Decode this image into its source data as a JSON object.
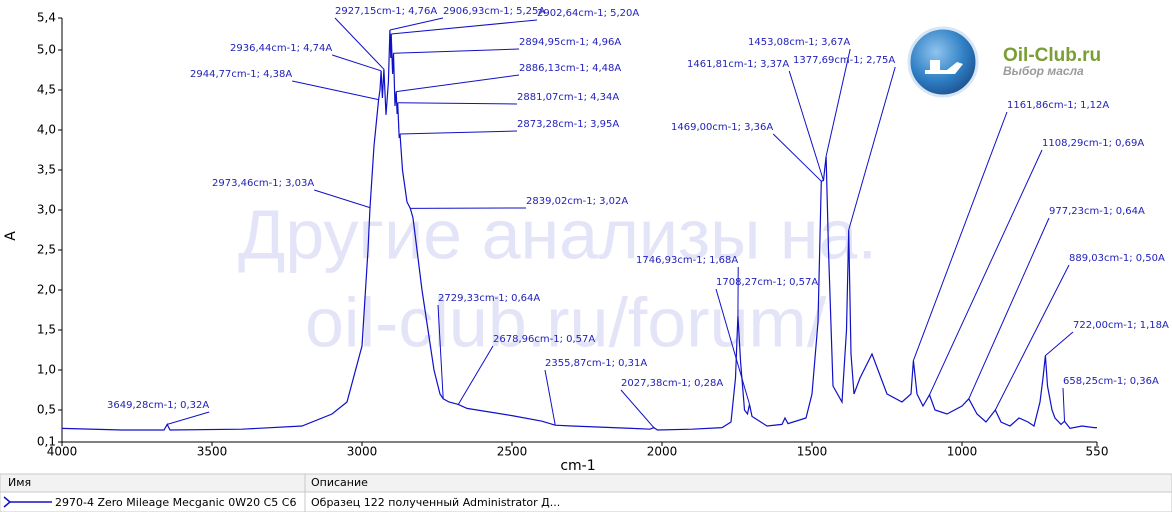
{
  "chart_data": {
    "type": "line",
    "xlabel": "cm-1",
    "ylabel": "A",
    "xlim": [
      4000,
      550
    ],
    "ylim": [
      0.1,
      5.4
    ],
    "xticks": [
      4000,
      3500,
      3000,
      2500,
      2000,
      1500,
      1000,
      550
    ],
    "yticks": [
      {
        "value": 0.1,
        "label": "0,1"
      },
      {
        "value": 0.5,
        "label": "0,5"
      },
      {
        "value": 1.0,
        "label": "1,0"
      },
      {
        "value": 1.5,
        "label": "1,5"
      },
      {
        "value": 2.0,
        "label": "2,0"
      },
      {
        "value": 2.5,
        "label": "2,5"
      },
      {
        "value": 3.0,
        "label": "3,0"
      },
      {
        "value": 3.5,
        "label": "3,5"
      },
      {
        "value": 4.0,
        "label": "4,0"
      },
      {
        "value": 4.5,
        "label": "4,5"
      },
      {
        "value": 5.0,
        "label": "5,0"
      },
      {
        "value": 5.4,
        "label": "5,4"
      }
    ],
    "x": [
      4000,
      3800,
      3660,
      3649.28,
      3640,
      3400,
      3200,
      3100,
      3050,
      3000,
      2980,
      2973.46,
      2960,
      2944.77,
      2940,
      2936.44,
      2932,
      2927.15,
      2920,
      2912,
      2906.93,
      2904,
      2902.64,
      2898,
      2894.95,
      2890,
      2886.13,
      2883,
      2881.07,
      2876,
      2873.28,
      2865,
      2850,
      2839.02,
      2830,
      2800,
      2760,
      2740,
      2729.33,
      2710,
      2690,
      2678.96,
      2650,
      2500,
      2400,
      2355.87,
      2300,
      2100,
      2040,
      2027.38,
      2015,
      1900,
      1800,
      1770,
      1755,
      1746.93,
      1738,
      1725,
      1715,
      1708.27,
      1700,
      1650,
      1600,
      1590,
      1580,
      1520,
      1500,
      1480,
      1469,
      1461.81,
      1458,
      1453.08,
      1445,
      1430,
      1400,
      1385,
      1377.69,
      1370,
      1360,
      1340,
      1300,
      1250,
      1200,
      1170,
      1161.86,
      1150,
      1130,
      1108.29,
      1090,
      1050,
      1000,
      977.23,
      950,
      920,
      889.03,
      870,
      840,
      810,
      780,
      760,
      740,
      730,
      722,
      715,
      700,
      690,
      670,
      658.25,
      640,
      600,
      560,
      550
    ],
    "series": [
      {
        "name": "2970-4 Zero Mileage Mecganic 0W20 C5 C6",
        "description": "Образец 122 полученный Administrator Д...",
        "color": "#1010c8",
        "values": [
          0.27,
          0.25,
          0.25,
          0.32,
          0.25,
          0.26,
          0.3,
          0.45,
          0.6,
          1.3,
          2.5,
          3.03,
          3.8,
          4.38,
          4.5,
          4.74,
          4.4,
          4.76,
          4.19,
          4.6,
          5.25,
          4.9,
          5.2,
          4.7,
          4.96,
          4.3,
          4.48,
          4.2,
          4.34,
          3.9,
          3.95,
          3.5,
          3.1,
          3.02,
          2.9,
          2.0,
          1.0,
          0.7,
          0.64,
          0.6,
          0.58,
          0.57,
          0.52,
          0.43,
          0.36,
          0.31,
          0.3,
          0.27,
          0.26,
          0.28,
          0.25,
          0.26,
          0.28,
          0.35,
          0.9,
          1.68,
          1.1,
          0.5,
          0.45,
          0.57,
          0.42,
          0.3,
          0.32,
          0.4,
          0.33,
          0.4,
          0.7,
          1.6,
          3.36,
          3.37,
          3.5,
          3.67,
          2.5,
          0.8,
          0.6,
          1.5,
          2.75,
          1.2,
          0.7,
          0.9,
          1.2,
          0.7,
          0.6,
          0.7,
          1.12,
          0.7,
          0.55,
          0.69,
          0.5,
          0.45,
          0.55,
          0.64,
          0.45,
          0.35,
          0.5,
          0.35,
          0.3,
          0.4,
          0.35,
          0.3,
          0.6,
          0.9,
          1.18,
          0.8,
          0.5,
          0.4,
          0.32,
          0.36,
          0.27,
          0.3,
          0.28,
          0.28
        ]
      }
    ],
    "annotations": [
      {
        "label": "2927,15cm-1; 4,76A",
        "x": 2927.15,
        "y": 4.76
      },
      {
        "label": "2906,93cm-1; 5,25A",
        "x": 2906.93,
        "y": 5.25
      },
      {
        "label": "2902,64cm-1; 5,20A",
        "x": 2902.64,
        "y": 5.2
      },
      {
        "label": "2936,44cm-1; 4,74A",
        "x": 2936.44,
        "y": 4.74
      },
      {
        "label": "2894,95cm-1; 4,96A",
        "x": 2894.95,
        "y": 4.96
      },
      {
        "label": "2944,77cm-1; 4,38A",
        "x": 2944.77,
        "y": 4.38
      },
      {
        "label": "2886,13cm-1; 4,48A",
        "x": 2886.13,
        "y": 4.48
      },
      {
        "label": "2881,07cm-1; 4,34A",
        "x": 2881.07,
        "y": 4.34
      },
      {
        "label": "2873,28cm-1; 3,95A",
        "x": 2873.28,
        "y": 3.95
      },
      {
        "label": "2973,46cm-1; 3,03A",
        "x": 2973.46,
        "y": 3.03
      },
      {
        "label": "2839,02cm-1; 3,02A",
        "x": 2839.02,
        "y": 3.02
      },
      {
        "label": "2729,33cm-1; 0,64A",
        "x": 2729.33,
        "y": 0.64
      },
      {
        "label": "2678,96cm-1; 0,57A",
        "x": 2678.96,
        "y": 0.57
      },
      {
        "label": "2355,87cm-1; 0,31A",
        "x": 2355.87,
        "y": 0.31
      },
      {
        "label": "2027,38cm-1; 0,28A",
        "x": 2027.38,
        "y": 0.28
      },
      {
        "label": "3649,28cm-1; 0,32A",
        "x": 3649.28,
        "y": 0.32
      },
      {
        "label": "1746,93cm-1; 1,68A",
        "x": 1746.93,
        "y": 1.68
      },
      {
        "label": "1708,27cm-1; 0,57A",
        "x": 1708.27,
        "y": 0.57
      },
      {
        "label": "1469,00cm-1; 3,36A",
        "x": 1469,
        "y": 3.36
      },
      {
        "label": "1461,81cm-1; 3,37A",
        "x": 1461.81,
        "y": 3.37
      },
      {
        "label": "1453,08cm-1; 3,67A",
        "x": 1453.08,
        "y": 3.67
      },
      {
        "label": "1377,69cm-1; 2,75A",
        "x": 1377.69,
        "y": 2.75
      },
      {
        "label": "1161,86cm-1; 1,12A",
        "x": 1161.86,
        "y": 1.12
      },
      {
        "label": "1108,29cm-1; 0,69A",
        "x": 1108.29,
        "y": 0.69
      },
      {
        "label": "977,23cm-1; 0,64A",
        "x": 977.23,
        "y": 0.64
      },
      {
        "label": "889,03cm-1; 0,50A",
        "x": 889.03,
        "y": 0.5
      },
      {
        "label": "722,00cm-1; 1,18A",
        "x": 722,
        "y": 1.18
      },
      {
        "label": "658,25cm-1; 0,36A",
        "x": 658.25,
        "y": 0.36
      }
    ]
  },
  "watermark": [
    "Другие анализы на.",
    "oil-club.ru/forum/"
  ],
  "logo": {
    "title": "Oil-Club.ru",
    "subtitle": "Выбор масла"
  },
  "legend_table": {
    "headers": [
      "Имя",
      "Описание"
    ]
  }
}
